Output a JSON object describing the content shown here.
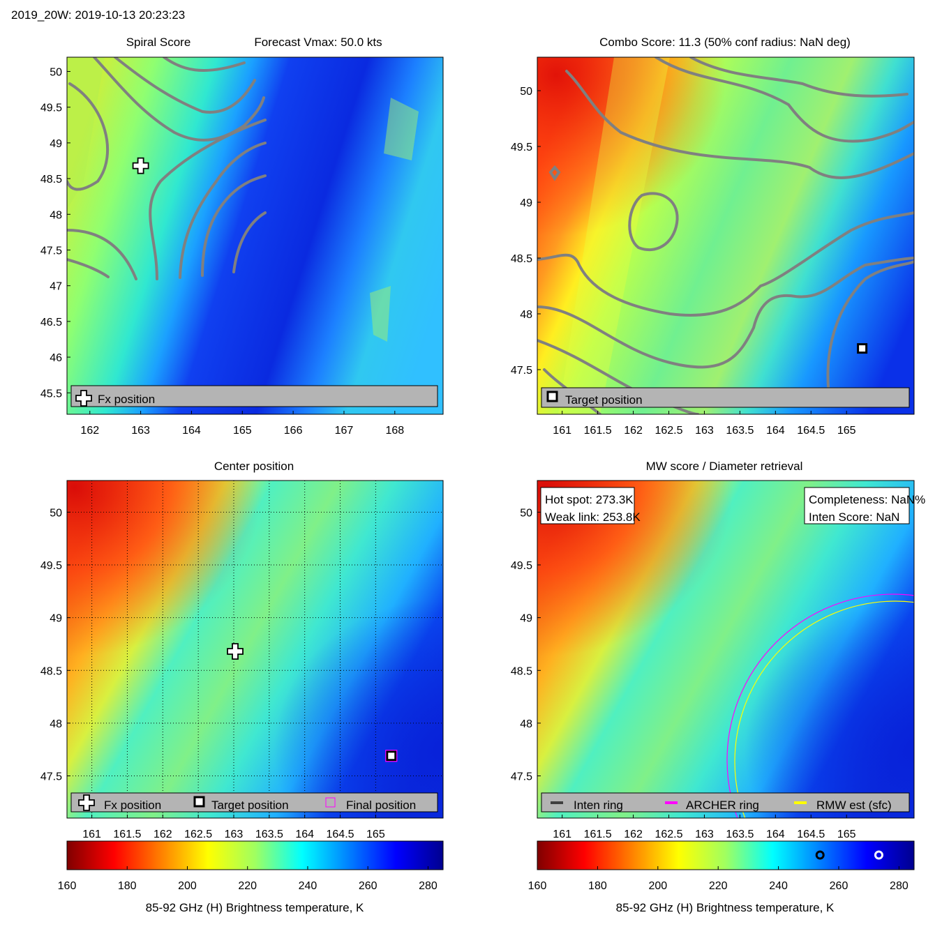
{
  "header": "2019_20W: 2019-10-13 20:23:23",
  "panels": {
    "spiral": {
      "title": "Spiral Score",
      "subtitle": "Forecast Vmax: 50.0 kts",
      "legend": "Fx position"
    },
    "combo": {
      "title": "Combo Score: 11.3  (50% conf radius: NaN deg)",
      "legend": "Target position"
    },
    "center": {
      "title": "Center position",
      "legend": [
        "Fx position",
        "Target position",
        "Final position"
      ]
    },
    "mw": {
      "title": "MW score / Diameter retrieval",
      "hotspot": "Hot spot: 273.3K",
      "weaklink": "Weak link: 253.8K",
      "completeness": "Completeness: NaN%",
      "intenscore": "Inten Score: NaN",
      "legend": [
        "Inten ring",
        "ARCHER ring",
        "RMW est (sfc)"
      ]
    }
  },
  "colorbar": {
    "label": "85-92 GHz (H) Brightness temperature, K",
    "ticks": [
      "160",
      "180",
      "200",
      "220",
      "240",
      "260",
      "280"
    ],
    "min": 160,
    "max": 285
  },
  "colors": {
    "fx": "#ffffff",
    "target": "#000000",
    "final": "#ff00ff",
    "inten_ring": "#404040",
    "archer_ring": "#ff00ff",
    "rmw_ring": "#ffff00",
    "contour": "#808080"
  },
  "chart_data": [
    {
      "type": "heatmap",
      "title": "Spiral Score",
      "subtitle": "Forecast Vmax: 50.0 kts",
      "xlim": [
        161.55,
        168.95
      ],
      "ylim": [
        45.2,
        50.2
      ],
      "xticks": [
        "162",
        "163",
        "164",
        "165",
        "166",
        "167",
        "168"
      ],
      "yticks": [
        "45.5",
        "46",
        "46.5",
        "47",
        "47.5",
        "48",
        "48.5",
        "49",
        "49.5",
        "50"
      ],
      "markers": [
        {
          "name": "Fx position",
          "x": 163.0,
          "y": 48.68
        }
      ]
    },
    {
      "type": "heatmap",
      "title": "Combo Score: 11.3  (50% conf radius: NaN deg)",
      "xlim": [
        160.65,
        165.95
      ],
      "ylim": [
        47.1,
        50.3
      ],
      "xticks": [
        "161",
        "161.5",
        "162",
        "162.5",
        "163",
        "163.5",
        "164",
        "164.5",
        "165"
      ],
      "yticks": [
        "47.5",
        "48",
        "48.5",
        "49",
        "49.5",
        "50"
      ],
      "markers": [
        {
          "name": "Target position",
          "x": 165.22,
          "y": 47.69
        }
      ]
    },
    {
      "type": "heatmap",
      "title": "Center position",
      "xlim": [
        160.65,
        165.95
      ],
      "ylim": [
        47.1,
        50.3
      ],
      "xticks": [
        "161",
        "161.5",
        "162",
        "162.5",
        "163",
        "163.5",
        "164",
        "164.5",
        "165"
      ],
      "yticks": [
        "47.5",
        "48",
        "48.5",
        "49",
        "49.5",
        "50"
      ],
      "markers": [
        {
          "name": "Fx position",
          "x": 163.02,
          "y": 48.68
        },
        {
          "name": "Target position",
          "x": 165.22,
          "y": 47.69
        },
        {
          "name": "Final position",
          "x": 165.22,
          "y": 47.69
        }
      ]
    },
    {
      "type": "heatmap",
      "title": "MW score / Diameter retrieval",
      "xlim": [
        160.65,
        165.95
      ],
      "ylim": [
        47.1,
        50.3
      ],
      "xticks": [
        "161",
        "161.5",
        "162",
        "162.5",
        "163",
        "163.5",
        "164",
        "164.5",
        "165"
      ],
      "yticks": [
        "47.5",
        "48",
        "48.5",
        "49",
        "49.5",
        "50"
      ],
      "colorbar_markers": [
        {
          "name": "Weak link",
          "value": 253.8
        },
        {
          "name": "Hot spot",
          "value": 273.3
        }
      ]
    }
  ]
}
